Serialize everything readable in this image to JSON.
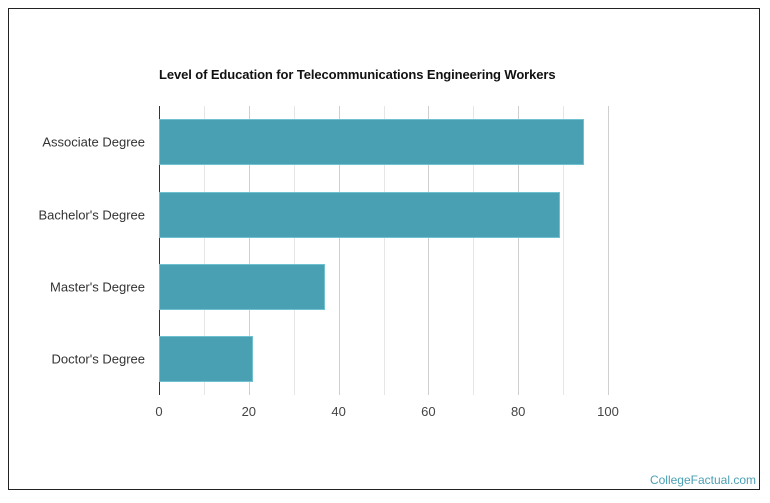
{
  "chart_data": {
    "type": "bar",
    "orientation": "horizontal",
    "title": "Level of Education for Telecommunications Engineering Workers",
    "categories": [
      "Associate Degree",
      "Bachelor's Degree",
      "Master's Degree",
      "Doctor's Degree"
    ],
    "values": [
      94.7,
      89.4,
      37.0,
      20.9
    ],
    "xlabel": "",
    "ylabel": "",
    "xlim": [
      0,
      100
    ],
    "xticks": [
      0,
      20,
      40,
      60,
      80,
      100
    ],
    "grid": true,
    "legend": null,
    "bar_color": "#4aa0b3"
  },
  "chart": {
    "title": "Level of Education for Telecommunications Engineering Workers",
    "categories": [
      "Associate Degree",
      "Bachelor's Degree",
      "Master's Degree",
      "Doctor's Degree"
    ],
    "xticks": [
      "0",
      "20",
      "40",
      "60",
      "80",
      "100"
    ]
  },
  "credit": "CollegeFactual.com"
}
